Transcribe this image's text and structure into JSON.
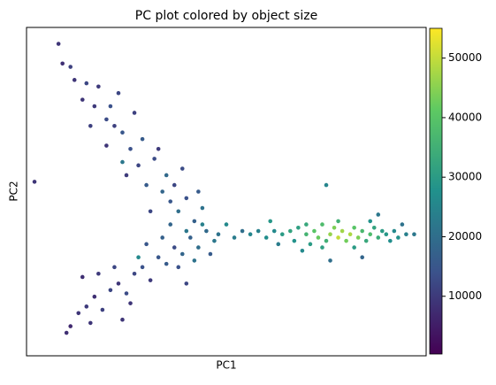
{
  "chart_data": {
    "type": "scatter",
    "title": "PC plot colored by object size",
    "x_label": "PC1",
    "y_label": "PC2",
    "xlim": [
      0,
      100
    ],
    "ylim": [
      0,
      100
    ],
    "colormap": "viridis",
    "clim": [
      300,
      55000
    ],
    "cticks": [
      10000,
      20000,
      30000,
      40000,
      50000
    ],
    "x": [
      8,
      9,
      11,
      12,
      15,
      17,
      20,
      22,
      24,
      20,
      26,
      28,
      25,
      30,
      32,
      34,
      36,
      31,
      38,
      40,
      42,
      23,
      27,
      29,
      35,
      18,
      14,
      24,
      37,
      44,
      21,
      33,
      16,
      39,
      43,
      10,
      11,
      13,
      15,
      17,
      19,
      21,
      23,
      25,
      27,
      29,
      31,
      33,
      35,
      37,
      39,
      41,
      43,
      45,
      47,
      18,
      22,
      26,
      30,
      34,
      38,
      42,
      16,
      28,
      36,
      46,
      14,
      40,
      24,
      2,
      40,
      44,
      48,
      50,
      52,
      54,
      56,
      58,
      60,
      62,
      64,
      66,
      67,
      68,
      70,
      71,
      72,
      73,
      74,
      75,
      76,
      77,
      78,
      79,
      80,
      81,
      82,
      83,
      84,
      85,
      86,
      87,
      88,
      89,
      90,
      91,
      92,
      93,
      95,
      97,
      70,
      74,
      78,
      82,
      86,
      69,
      63,
      76,
      84,
      88,
      75,
      94,
      61
    ],
    "y": [
      95,
      89,
      88,
      84,
      83,
      76,
      72,
      70,
      68,
      64,
      63,
      58,
      55,
      52,
      60,
      50,
      47,
      44,
      44,
      48,
      41,
      80,
      74,
      66,
      55,
      82,
      78,
      59,
      52,
      45,
      76,
      63,
      70,
      57,
      50,
      7,
      9,
      13,
      15,
      18,
      14,
      20,
      22,
      19,
      25,
      27,
      23,
      30,
      28,
      33,
      31,
      36,
      33,
      38,
      35,
      25,
      27,
      16,
      34,
      36,
      27,
      29,
      10,
      30,
      40,
      31,
      24,
      22,
      11,
      53,
      38,
      40,
      37,
      40,
      36,
      38,
      37,
      38,
      36,
      38,
      37,
      38,
      35,
      39,
      37,
      34,
      38,
      36,
      40,
      35,
      37,
      39,
      36,
      38,
      35,
      37,
      39,
      36,
      38,
      35,
      37,
      39,
      36,
      38,
      37,
      35,
      38,
      36,
      37,
      37,
      40,
      33,
      41,
      33,
      41,
      32,
      34,
      29,
      30,
      43,
      52,
      40,
      41
    ],
    "values": [
      9000,
      8000,
      11000,
      9000,
      12000,
      10000,
      13000,
      11000,
      15000,
      9000,
      14000,
      12000,
      10000,
      16000,
      13000,
      18000,
      15000,
      12000,
      20000,
      14000,
      17000,
      12000,
      11000,
      16000,
      19000,
      10000,
      9000,
      22000,
      12000,
      21000,
      14000,
      10000,
      11000,
      13000,
      16000,
      8000,
      7000,
      9000,
      10000,
      8000,
      11000,
      12000,
      9000,
      13000,
      12000,
      14000,
      10000,
      15000,
      16000,
      13000,
      18000,
      17000,
      20000,
      19000,
      22000,
      10000,
      12000,
      9000,
      15000,
      17000,
      14000,
      21000,
      9000,
      26000,
      18000,
      16000,
      8000,
      12000,
      9000,
      9000,
      22000,
      24000,
      21000,
      26000,
      23000,
      20000,
      25000,
      24000,
      27000,
      26000,
      30000,
      32000,
      28000,
      31000,
      36000,
      30000,
      40000,
      42000,
      38000,
      35000,
      46000,
      44000,
      50000,
      47000,
      43000,
      48000,
      40000,
      44000,
      37000,
      33000,
      38000,
      32000,
      34000,
      30000,
      29000,
      27000,
      26000,
      28000,
      24000,
      22000,
      33000,
      31000,
      35000,
      30000,
      28000,
      26000,
      23000,
      20000,
      18000,
      22000,
      25000,
      21000,
      29000
    ]
  }
}
